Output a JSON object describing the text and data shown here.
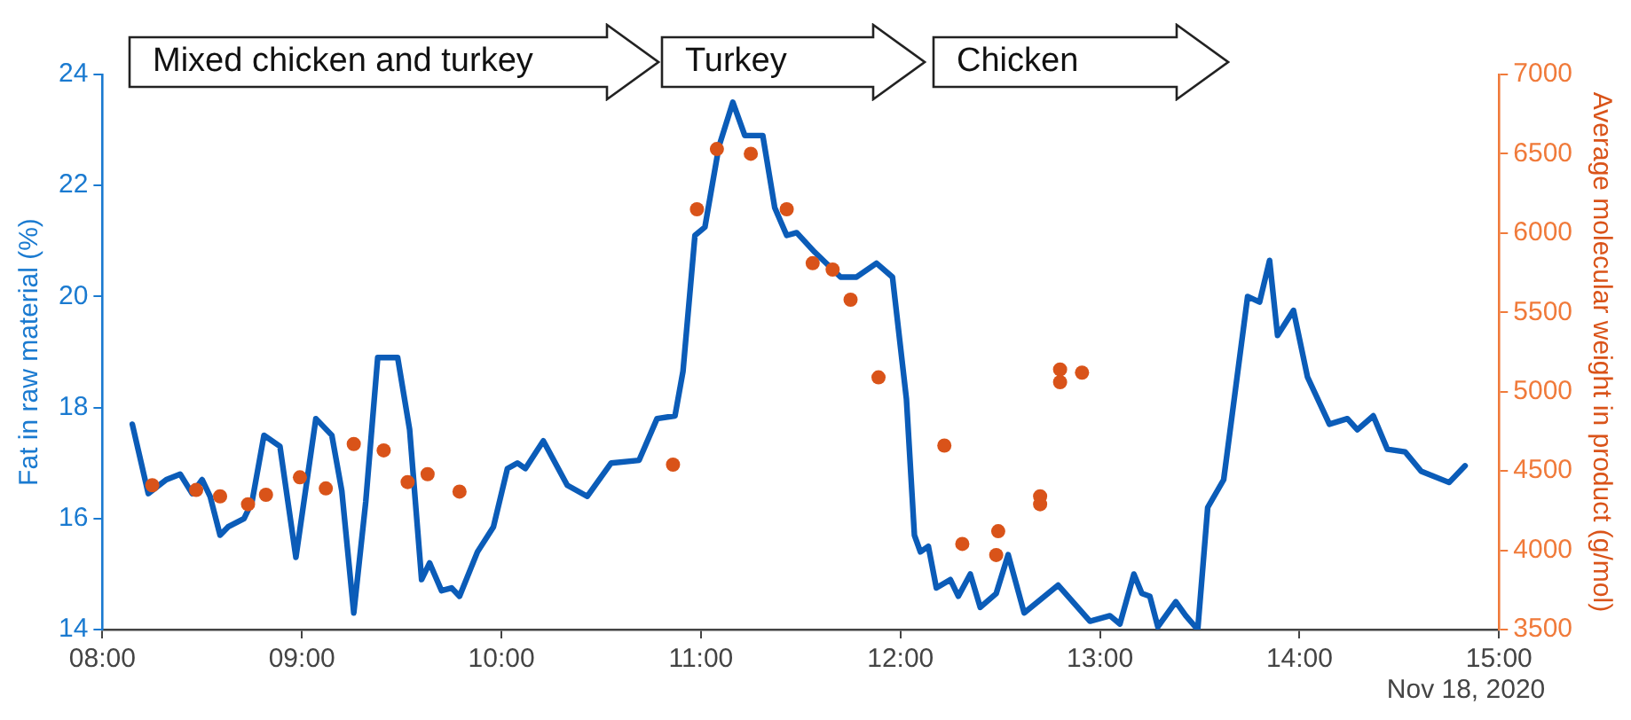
{
  "chart_data": {
    "type": "line",
    "ylabel": "Fat in raw material (%)",
    "y2label": "Average molecular weight in product (g/mol)",
    "annotations": [
      "Mixed chicken and turkey",
      "Turkey",
      "Chicken",
      "Nov 18, 2020"
    ],
    "xlim": [
      8,
      15
    ],
    "xticks": [
      {
        "value": 8,
        "label": "08:00"
      },
      {
        "value": 9,
        "label": "09:00"
      },
      {
        "value": 10,
        "label": "10:00"
      },
      {
        "value": 11,
        "label": "11:00"
      },
      {
        "value": 12,
        "label": "12:00"
      },
      {
        "value": 13,
        "label": "13:00"
      },
      {
        "value": 14,
        "label": "14:00"
      },
      {
        "value": 15,
        "label": "15:00"
      }
    ],
    "ylim": [
      14,
      24
    ],
    "yticks": [
      14,
      16,
      18,
      20,
      22,
      24
    ],
    "y2lim": [
      3500,
      7000
    ],
    "y2ticks": [
      3500,
      4000,
      4500,
      5000,
      5500,
      6000,
      6500,
      7000
    ],
    "grid": false,
    "legend": false,
    "series": [
      {
        "color": "#0b5cb8",
        "marker": "none",
        "line_style": "solid",
        "x": [
          8.15,
          8.23,
          8.32,
          8.39,
          8.45,
          8.5,
          8.54,
          8.59,
          8.63,
          8.71,
          8.75,
          8.81,
          8.89,
          8.97,
          9.07,
          9.15,
          9.2,
          9.26,
          9.32,
          9.38,
          9.48,
          9.54,
          9.6,
          9.64,
          9.7,
          9.75,
          9.79,
          9.88,
          9.96,
          10.03,
          10.08,
          10.12,
          10.21,
          10.33,
          10.43,
          10.55,
          10.69,
          10.78,
          10.87,
          10.91,
          10.97,
          11.02,
          11.09,
          11.16,
          11.22,
          11.31,
          11.37,
          11.43,
          11.48,
          11.57,
          11.7,
          11.78,
          11.88,
          11.96,
          12.03,
          12.07,
          12.1,
          12.14,
          12.18,
          12.25,
          12.29,
          12.35,
          12.4,
          12.48,
          12.54,
          12.62,
          12.79,
          12.95,
          13.05,
          13.1,
          13.17,
          13.21,
          13.25,
          13.29,
          13.38,
          13.43,
          13.49,
          13.54,
          13.62,
          13.68,
          13.74,
          13.8,
          13.85,
          13.89,
          13.97,
          14.04,
          14.15,
          14.24,
          14.29,
          14.37,
          14.44,
          14.53,
          14.61,
          14.75,
          14.83
        ],
        "values": [
          17.7,
          16.45,
          16.7,
          16.8,
          16.45,
          16.7,
          16.4,
          15.7,
          15.85,
          16.0,
          16.3,
          17.5,
          17.3,
          15.3,
          17.8,
          17.5,
          16.5,
          14.3,
          16.3,
          18.9,
          18.9,
          17.6,
          14.9,
          15.2,
          14.7,
          14.75,
          14.6,
          15.4,
          15.85,
          16.9,
          17.0,
          16.9,
          17.4,
          16.6,
          16.4,
          17.0,
          17.05,
          17.8,
          17.85,
          18.65,
          21.1,
          21.25,
          22.7,
          23.5,
          22.9,
          22.9,
          21.6,
          21.1,
          21.15,
          20.8,
          20.35,
          20.35,
          20.6,
          20.35,
          18.15,
          15.7,
          15.4,
          15.5,
          14.75,
          14.9,
          14.6,
          15.0,
          14.4,
          14.65,
          15.35,
          14.3,
          14.8,
          14.15,
          14.25,
          14.1,
          15.0,
          14.65,
          14.6,
          14.05,
          14.5,
          14.25,
          14.0,
          16.2,
          16.7,
          18.35,
          20.0,
          19.9,
          20.65,
          19.3,
          19.75,
          18.55,
          17.7,
          17.8,
          17.6,
          17.85,
          17.25,
          17.2,
          16.85,
          16.65,
          16.95
        ]
      },
      {
        "type": "scatter",
        "axis": "y2",
        "color": "#d95319",
        "marker": "circle",
        "x": [
          8.25,
          8.47,
          8.59,
          8.73,
          8.82,
          8.99,
          9.12,
          9.26,
          9.41,
          9.53,
          9.63,
          9.79,
          10.86,
          10.98,
          11.08,
          11.25,
          11.43,
          11.56,
          11.66,
          11.75,
          11.89,
          12.22,
          12.31,
          12.49,
          12.48,
          12.7,
          12.7,
          12.8,
          12.8,
          12.91
        ],
        "values": [
          4410,
          4380,
          4340,
          4290,
          4350,
          4460,
          4390,
          4670,
          4630,
          4430,
          4480,
          4370,
          4540,
          6150,
          6530,
          6500,
          6150,
          5810,
          5770,
          5580,
          5090,
          4660,
          4040,
          4120,
          3970,
          4340,
          4290,
          5140,
          5060,
          5120
        ]
      }
    ]
  }
}
